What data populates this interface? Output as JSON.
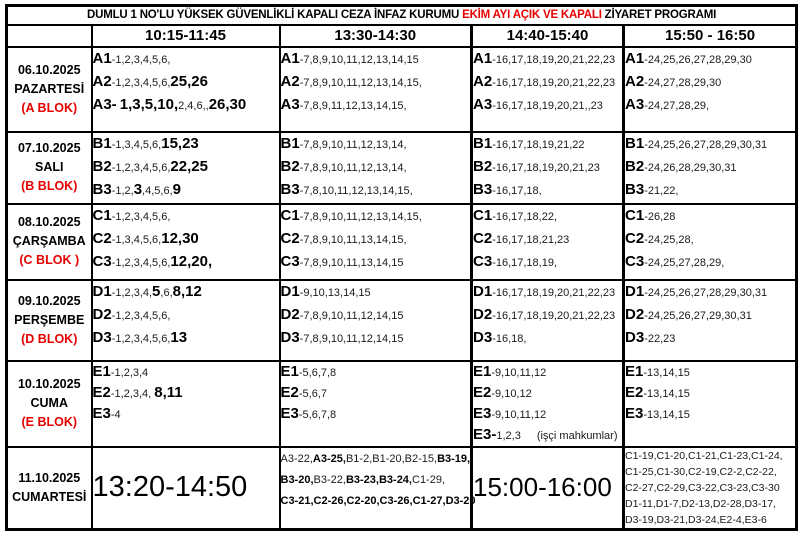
{
  "title": {
    "prefix": "DUMLU 1 NO'LU YÜKSEK GÜVENLİKLİ KAPALI CEZA İNFAZ KURUMU ",
    "highlight": "EKİM AYI AÇIK VE KAPALI",
    "suffix": " ZİYARET PROGRAMI"
  },
  "colors": {
    "highlight_red": "#e60000",
    "border_black": "#000000",
    "background": "#ffffff"
  },
  "header": {
    "time_columns": [
      "10:15-11:45",
      "13:30-14:30",
      "14:40-15:40",
      "15:50 - 16:50"
    ]
  },
  "day_rows": [
    {
      "date": "06.10.2025",
      "day": "PAZARTESİ",
      "block": "(A BLOK)",
      "cells": [
        [
          [
            [
              "A1",
              "p"
            ],
            [
              "-1,2,3,4,5,6,",
              "n"
            ]
          ],
          [
            [
              "A2",
              "p"
            ],
            [
              "-1,2,3,4,5,6,",
              "n"
            ],
            [
              "25,26",
              "b"
            ]
          ],
          [
            [
              "A3-",
              "p"
            ],
            [
              " ",
              "n"
            ],
            [
              "1,3,5,10,",
              "b"
            ],
            [
              "2,4,6,,",
              "n"
            ],
            [
              "26,30",
              "b"
            ]
          ]
        ],
        [
          [
            [
              "A1",
              "p"
            ],
            [
              "-7,8,9,10,11,12,13,14,15",
              "n"
            ]
          ],
          [
            [
              "A2",
              "p"
            ],
            [
              "-7,8,9,10,11,12,13,14,15,",
              "n"
            ]
          ],
          [
            [
              "A3",
              "p"
            ],
            [
              "-7,8,9,11,12,13,14,15,",
              "n"
            ]
          ]
        ],
        [
          [
            [
              "A1",
              "p"
            ],
            [
              "-16,17,18,19,20,21,22,23",
              "n"
            ]
          ],
          [
            [
              "A2",
              "p"
            ],
            [
              "-16,17,18,19,20,21,22,23",
              "n"
            ]
          ],
          [
            [
              "A3",
              "p"
            ],
            [
              "-16,17,18,19,20,21,,23",
              "n"
            ]
          ]
        ],
        [
          [
            [
              "A1",
              "p"
            ],
            [
              "-24,25,26,27,28,29,30",
              "n"
            ]
          ],
          [
            [
              "A2",
              "p"
            ],
            [
              "-24,27,28,29,30",
              "n"
            ]
          ],
          [
            [
              "A3",
              "p"
            ],
            [
              "-24,27,28,29,",
              "n"
            ]
          ]
        ]
      ]
    },
    {
      "date": "07.10.2025",
      "day": "SALI",
      "block": "(B BLOK)",
      "cells": [
        [
          [
            [
              "B1",
              "p"
            ],
            [
              "-1,3,4,5,6,",
              "n"
            ],
            [
              "15,23",
              "b"
            ]
          ],
          [
            [
              "B2",
              "p"
            ],
            [
              "-1,2,3,4,5,6,",
              "n"
            ],
            [
              "22,25",
              "b"
            ]
          ],
          [
            [
              "B3",
              "p"
            ],
            [
              "-1,2,",
              "n"
            ],
            [
              "3",
              "b"
            ],
            [
              ",4,5,6,",
              "n"
            ],
            [
              "9",
              "b"
            ]
          ]
        ],
        [
          [
            [
              "B1",
              "p"
            ],
            [
              "-7,8,9,10,11,12,13,14,",
              "n"
            ]
          ],
          [
            [
              "B2",
              "p"
            ],
            [
              "-7,8,9,10,11,12,13,14,",
              "n"
            ]
          ],
          [
            [
              "B3",
              "p"
            ],
            [
              "-7,8,10,11,12,13,14,15,",
              "n"
            ]
          ]
        ],
        [
          [
            [
              "B1",
              "p"
            ],
            [
              "-16,17,18,19,21,22",
              "n"
            ]
          ],
          [
            [
              "B2",
              "p"
            ],
            [
              "-16,17,18,19,20,21,23",
              "n"
            ]
          ],
          [
            [
              "B3",
              "p"
            ],
            [
              "-16,17,18,",
              "n"
            ]
          ]
        ],
        [
          [
            [
              "B1",
              "p"
            ],
            [
              "-24,25,26,27,28,29,30,31",
              "n"
            ]
          ],
          [
            [
              "B2",
              "p"
            ],
            [
              "-24,26,28,29,30,31",
              "n"
            ]
          ],
          [
            [
              "B3",
              "p"
            ],
            [
              "-21,22,",
              "n"
            ]
          ]
        ]
      ]
    },
    {
      "date": "08.10.2025",
      "day": "ÇARŞAMBA",
      "block": "(C BLOK )",
      "cells": [
        [
          [
            [
              "C1",
              "p"
            ],
            [
              "-1,2,3,4,5,6,",
              "n"
            ]
          ],
          [
            [
              "C2",
              "p"
            ],
            [
              "-1,3,4,5,6,",
              "n"
            ],
            [
              "12,30",
              "b"
            ]
          ],
          [
            [
              "C3",
              "p"
            ],
            [
              "-1,2,3,4,5,6,",
              "n"
            ],
            [
              "12,20,",
              "b"
            ]
          ]
        ],
        [
          [
            [
              "C1",
              "p"
            ],
            [
              "-7,8,9,10,11,12,13,14,15,",
              "n"
            ]
          ],
          [
            [
              "C2",
              "p"
            ],
            [
              "-7,8,9,10,11,13,14,15,",
              "n"
            ]
          ],
          [
            [
              "C3",
              "p"
            ],
            [
              "-7,8,9,10,11,13,14,15",
              "n"
            ]
          ]
        ],
        [
          [
            [
              "C1",
              "p"
            ],
            [
              "-16,17,18,22,",
              "n"
            ]
          ],
          [
            [
              "C2",
              "p"
            ],
            [
              "-16,17,18,21,23",
              "n"
            ]
          ],
          [
            [
              "C3",
              "p"
            ],
            [
              "-16,17,18,19,",
              "n"
            ]
          ]
        ],
        [
          [
            [
              "C1",
              "p"
            ],
            [
              "-26,28",
              "n"
            ]
          ],
          [
            [
              "C2",
              "p"
            ],
            [
              "-24,25,28,",
              "n"
            ]
          ],
          [
            [
              "C3",
              "p"
            ],
            [
              "-24,25,27,28,29,",
              "n"
            ]
          ]
        ]
      ]
    },
    {
      "date": "09.10.2025",
      "day": "PERŞEMBE",
      "block": "(D BLOK)",
      "cells": [
        [
          [
            [
              "D1",
              "p"
            ],
            [
              "-1,2,3,4,",
              "n"
            ],
            [
              "5",
              "b"
            ],
            [
              ",6,",
              "n"
            ],
            [
              "8,12",
              "b"
            ]
          ],
          [
            [
              "D2",
              "p"
            ],
            [
              "-1,2,3,4,5,6,",
              "n"
            ]
          ],
          [
            [
              "D3",
              "p"
            ],
            [
              "-1,2,3,4,5,6,",
              "n"
            ],
            [
              "13",
              "b"
            ]
          ]
        ],
        [
          [
            [
              "D1",
              "p"
            ],
            [
              "-9,10,13,14,15",
              "n"
            ]
          ],
          [
            [
              "D2",
              "p"
            ],
            [
              "-7,8,9,10,11,12,14,15",
              "n"
            ]
          ],
          [
            [
              "D3",
              "p"
            ],
            [
              "-7,8,9,10,11,12,14,15",
              "n"
            ]
          ]
        ],
        [
          [
            [
              "D1",
              "p"
            ],
            [
              "-16,17,18,19,20,21,22,23",
              "n"
            ]
          ],
          [
            [
              "D2",
              "p"
            ],
            [
              "-16,17,18,19,20,21,22,23",
              "n"
            ]
          ],
          [
            [
              "D3",
              "p"
            ],
            [
              "-16,18,",
              "n"
            ]
          ]
        ],
        [
          [
            [
              "D1",
              "p"
            ],
            [
              "-24,25,26,27,28,29,30,31",
              "n"
            ]
          ],
          [
            [
              "D2",
              "p"
            ],
            [
              "-24,25,26,27,29,30,31",
              "n"
            ]
          ],
          [
            [
              "D3",
              "p"
            ],
            [
              "-22,23",
              "n"
            ]
          ]
        ]
      ]
    },
    {
      "date": "10.10.2025",
      "day": "CUMA",
      "block": "(E BLOK)",
      "cells": [
        [
          [
            [
              "E1",
              "p"
            ],
            [
              "-1,2,3,4",
              "n"
            ]
          ],
          [
            [
              "E2",
              "p"
            ],
            [
              "-1,2,3,4, ",
              "n"
            ],
            [
              "8,11",
              "b"
            ]
          ],
          [
            [
              "E3",
              "p"
            ],
            [
              "-4",
              "n"
            ]
          ]
        ],
        [
          [
            [
              "E1",
              "p"
            ],
            [
              "-5,6,7,8",
              "n"
            ]
          ],
          [
            [
              "E2",
              "p"
            ],
            [
              "-5,6,7",
              "n"
            ]
          ],
          [
            [
              "E3",
              "p"
            ],
            [
              "-5,6,7,8",
              "n"
            ]
          ]
        ],
        [
          [
            [
              "E1",
              "p"
            ],
            [
              "-9,10,11,12",
              "n"
            ]
          ],
          [
            [
              "E2",
              "p"
            ],
            [
              "-9,10,12",
              "n"
            ]
          ],
          [
            [
              "E3",
              "p"
            ],
            [
              "-9,10,11,12",
              "n"
            ]
          ],
          [
            [
              "E3-",
              "p"
            ],
            [
              "1,2,3",
              "n"
            ],
            [
              "(işçi mahkumlar)",
              "note"
            ]
          ]
        ],
        [
          [
            [
              "E1",
              "p"
            ],
            [
              "-13,14,15",
              "n"
            ]
          ],
          [
            [
              "E2",
              "p"
            ],
            [
              "-13,14,15",
              "n"
            ]
          ],
          [
            [
              "E3",
              "p"
            ],
            [
              "-13,14,15",
              "n"
            ]
          ]
        ]
      ]
    }
  ],
  "saturday_row": {
    "date": "11.10.2025",
    "day": "CUMARTESİ",
    "time1": "13:20-14:50",
    "list1": [
      [
        [
          "A3-22,",
          "sn"
        ],
        [
          "A3-25,",
          "sb"
        ],
        [
          "B1-2,B1-20,B2-15,",
          "sn"
        ],
        [
          "B3-19,",
          "sb"
        ]
      ],
      [
        [
          "B3-20,",
          "sb"
        ],
        [
          "B3-22,",
          "sn"
        ],
        [
          "B3-23,B3-24,",
          "sb"
        ],
        [
          "C1-29,",
          "sn"
        ]
      ],
      [
        [
          "C3-21,C2-26,C2-20,C3-26,C1-27,D3-20",
          "sb"
        ]
      ]
    ],
    "time2": "15:00-16:00",
    "list2": [
      "C1-19,C1-20,C1-21,C1-23,C1-24,",
      "C1-25,C1-30,C2-19,C2-2,C2-22,",
      "C2-27,C2-29,C3-22,C3-23,C3-30",
      "D1-11,D1-7,D2-13,D2-28,D3-17,",
      "D3-19,D3-21,D3-24,E2-4,E3-6"
    ]
  }
}
